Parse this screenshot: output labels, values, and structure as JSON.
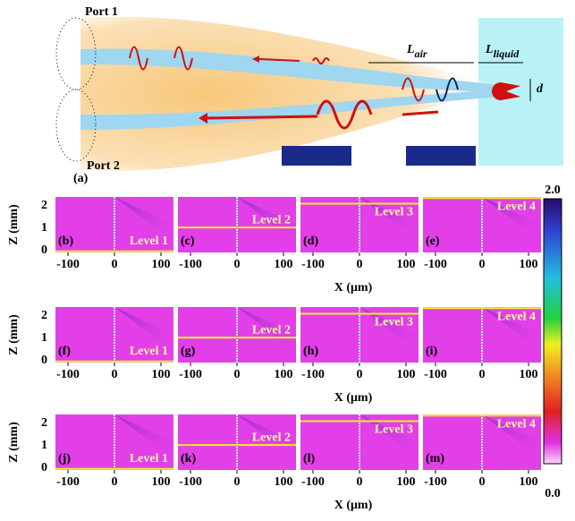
{
  "diagram": {
    "label": "(a)",
    "port1": "Port 1",
    "port2": "Port 2",
    "l_air": {
      "symbol": "L",
      "subscript": "air"
    },
    "l_liquid": {
      "symbol": "L",
      "subscript": "liquid"
    },
    "d": "d"
  },
  "panels": [
    {
      "label": "(b)",
      "level": "Level 1"
    },
    {
      "label": "(c)",
      "level": "Level 2"
    },
    {
      "label": "(d)",
      "level": "Level 3"
    },
    {
      "label": "(e)",
      "level": "Level 4"
    },
    {
      "label": "(f)",
      "level": "Level 1"
    },
    {
      "label": "(g)",
      "level": "Level 2"
    },
    {
      "label": "(h)",
      "level": "Level 3"
    },
    {
      "label": "(i)",
      "level": "Level 4"
    },
    {
      "label": "(j)",
      "level": "Level 1"
    },
    {
      "label": "(k)",
      "level": "Level 2"
    },
    {
      "label": "(l)",
      "level": "Level 3"
    },
    {
      "label": "(m)",
      "level": "Level 4"
    }
  ],
  "x_axis": {
    "label": "X (μm)",
    "ticks": [
      -100,
      0,
      100
    ]
  },
  "y_axis": {
    "label": "Z (mm)",
    "ticks": [
      0,
      1,
      2
    ]
  },
  "colorbar": {
    "max": "2.0",
    "min": "0.0"
  }
}
